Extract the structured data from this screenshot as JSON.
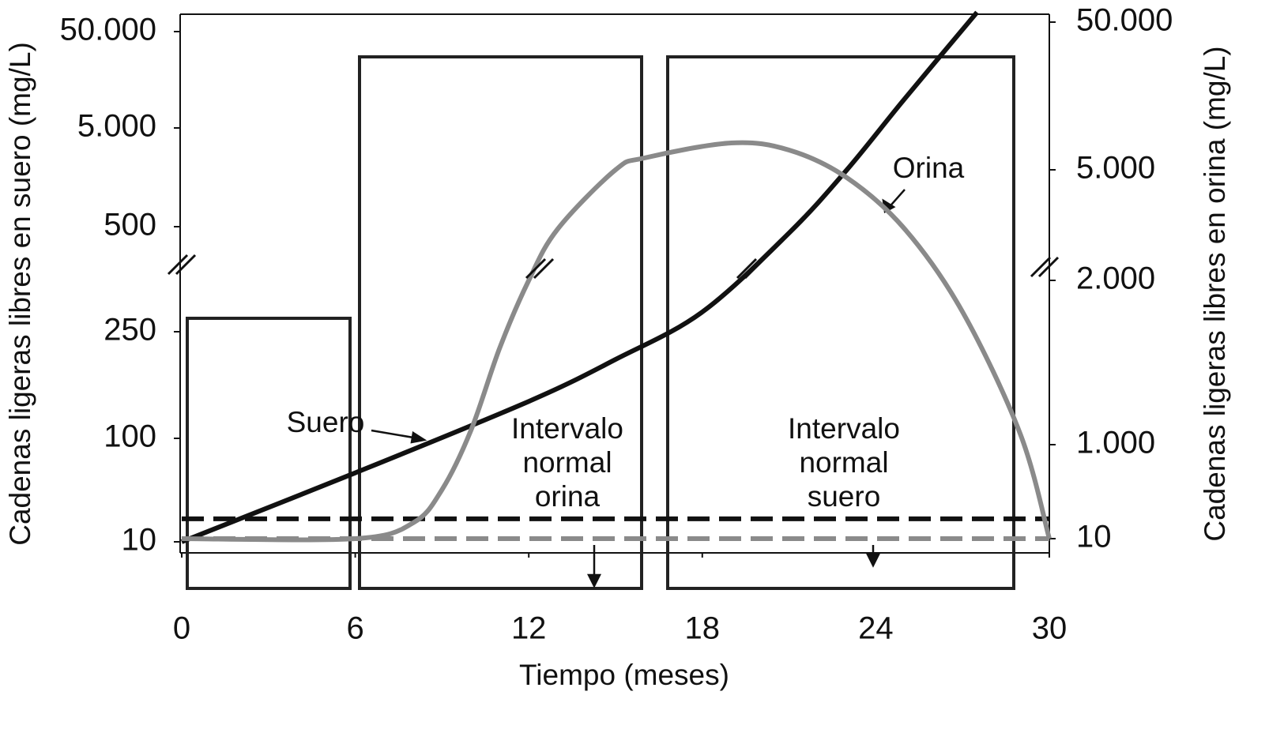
{
  "chart_data": {
    "type": "line",
    "x_label": "Tiempo (meses)",
    "y_label": "Cadenas ligeras libres en suero (mg/L)",
    "y2_label": "Cadenas ligeras libres en orina (mg/L)",
    "xlim": [
      0,
      30
    ],
    "xticks": [
      0,
      6,
      12,
      18,
      24,
      30
    ],
    "ylim": [
      10,
      50000
    ],
    "yticks": [
      10,
      100,
      250,
      500,
      {
        "value": 5000,
        "label": "5.000"
      },
      {
        "value": 50000,
        "label": "50.000"
      }
    ],
    "y2lim": [
      10,
      50000
    ],
    "y2ticks": [
      10,
      {
        "value": 1000,
        "label": "1.000"
      },
      {
        "value": 2000,
        "label": "2.000"
      },
      {
        "value": 5000,
        "label": "5.000"
      },
      {
        "value": 50000,
        "label": "50.000"
      }
    ],
    "series": [
      {
        "name": "Suero",
        "color": "#111111",
        "x": [
          0,
          6,
          12,
          15,
          18,
          21,
          23,
          25,
          27.5
        ],
        "values": [
          10,
          70,
          152,
          211,
          297,
          485,
          3092,
          18650,
          59000
        ]
      },
      {
        "name": "Orina",
        "color": "#8a8a8a",
        "axis": "y2",
        "x": [
          0,
          6,
          8,
          9,
          10,
          11,
          12,
          13,
          15,
          16,
          19,
          21,
          23,
          25,
          27,
          29,
          30
        ],
        "values": [
          10,
          10,
          176,
          526,
          1087,
          1591,
          2000,
          3393,
          5000,
          8610,
          13180,
          11016,
          4786,
          3393,
          1808,
          1063,
          10
        ]
      }
    ],
    "reference_lines": [
      {
        "value": 30,
        "color": "#111111"
      },
      {
        "value": 10,
        "axis": "y2",
        "color": "#8a8a8a"
      }
    ],
    "box_labels": [
      [
        "Intervalo",
        "normal",
        "orina"
      ],
      [
        "Intervalo",
        "normal",
        "suero"
      ]
    ]
  }
}
